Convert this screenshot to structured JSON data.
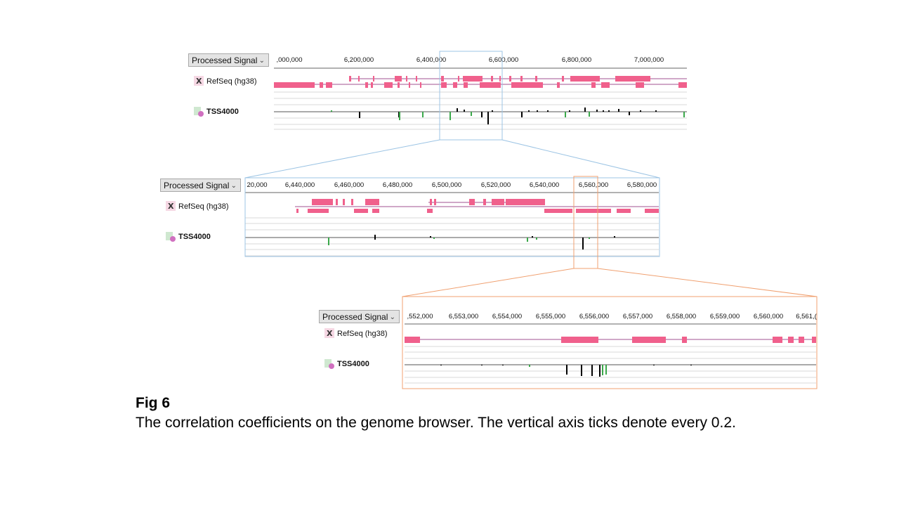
{
  "panels": [
    {
      "dropdown": "Processed Signal",
      "ticks": [
        ",000,000",
        "6,200,000",
        "6,400,000",
        "6,600,000",
        "6,800,000",
        "7,000,000"
      ],
      "tracks": [
        "RefSeq (hg38)",
        "TSS4000"
      ]
    },
    {
      "dropdown": "Processed Signal",
      "ticks": [
        "20,000",
        "6,440,000",
        "6,460,000",
        "6,480,000",
        "6,500,000",
        "6,520,000",
        "6,540,000",
        "6,560,000",
        "6,580,000"
      ],
      "tracks": [
        "RefSeq (hg38)",
        "TSS4000"
      ]
    },
    {
      "dropdown": "Processed Signal",
      "ticks": [
        ",552,000",
        "6,553,000",
        "6,554,000",
        "6,555,000",
        "6,556,000",
        "6,557,000",
        "6,558,000",
        "6,559,000",
        "6,560,000",
        "6,561,("
      ],
      "tracks": [
        "RefSeq (hg38)",
        "TSS4000"
      ]
    }
  ],
  "colors": {
    "gene": "#f0608c",
    "intron": "#a05090",
    "positive_signal": "#000000",
    "negative_signal": "#3aa84a",
    "zoom1": "#9cc4e4",
    "zoom2": "#f0a070"
  },
  "caption": {
    "title": "Fig 6",
    "text": "The correlation coefficients on the genome browser. The vertical axis ticks denote every 0.2."
  }
}
